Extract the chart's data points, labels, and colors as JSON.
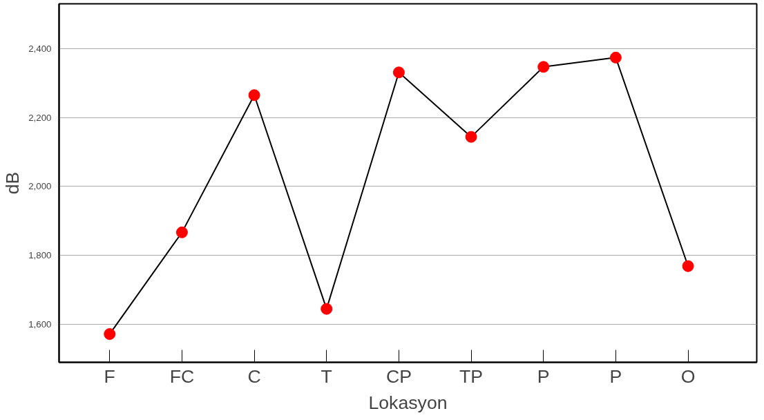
{
  "chart_data": {
    "type": "line",
    "xlabel": "Lokasyon",
    "ylabel": "dB",
    "categories": [
      "F",
      "FC",
      "C",
      "T",
      "CP",
      "TP",
      "P",
      "P",
      "O"
    ],
    "series": [
      {
        "color": "#ff0000",
        "values": [
          1572,
          1867,
          2265,
          1645,
          2331,
          2144,
          2347,
          2374,
          1769
        ]
      }
    ],
    "ylim": [
      1490,
      2530
    ],
    "yticks": [
      {
        "value": 1600,
        "label": "1,600"
      },
      {
        "value": 1800,
        "label": "1,800"
      },
      {
        "value": 2000,
        "label": "2,000"
      },
      {
        "value": 2200,
        "label": "2,200"
      },
      {
        "value": 2400,
        "label": "2,400"
      }
    ],
    "grid": "y",
    "marker": "circle",
    "line_style": "solid"
  }
}
